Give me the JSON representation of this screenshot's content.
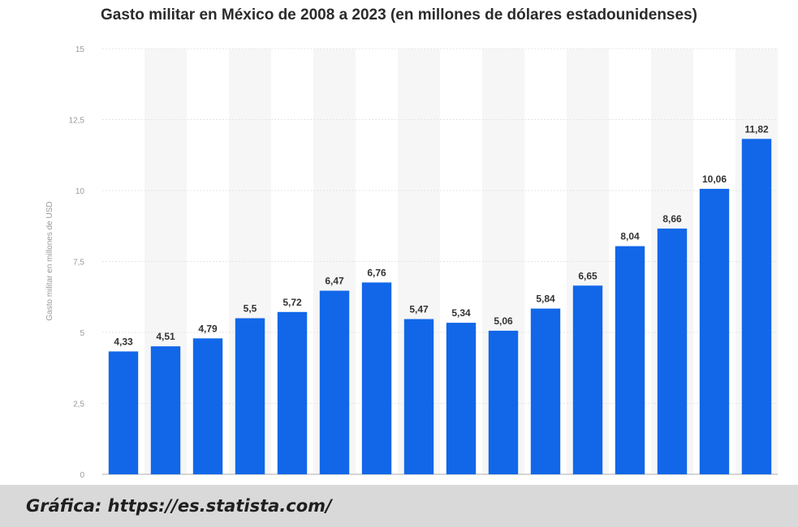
{
  "chart_data": {
    "type": "bar",
    "title": "Gasto militar en México de 2008 a 2023 (en millones de dólares estadounidenses)",
    "ylabel": "Gasto militar en millones de USD",
    "xlabel": "",
    "ylim": [
      0,
      15
    ],
    "yticks": [
      "0",
      "2,5",
      "5",
      "7,5",
      "10",
      "12,5",
      "15"
    ],
    "ytick_values": [
      0,
      2.5,
      5,
      7.5,
      10,
      12.5,
      15
    ],
    "values": [
      4.33,
      4.51,
      4.79,
      5.5,
      5.72,
      6.47,
      6.76,
      5.47,
      5.34,
      5.06,
      5.84,
      6.65,
      8.04,
      8.66,
      10.06,
      11.82
    ],
    "value_labels": [
      "4,33",
      "4,51",
      "4,79",
      "5,5",
      "5,72",
      "6,47",
      "6,76",
      "5,47",
      "5,34",
      "5,06",
      "5,84",
      "6,65",
      "8,04",
      "8,66",
      "10,06",
      "11,82"
    ],
    "grid": true,
    "bar_color": "#1167e8"
  },
  "caption": "Gráfica: https://es.statista.com/"
}
